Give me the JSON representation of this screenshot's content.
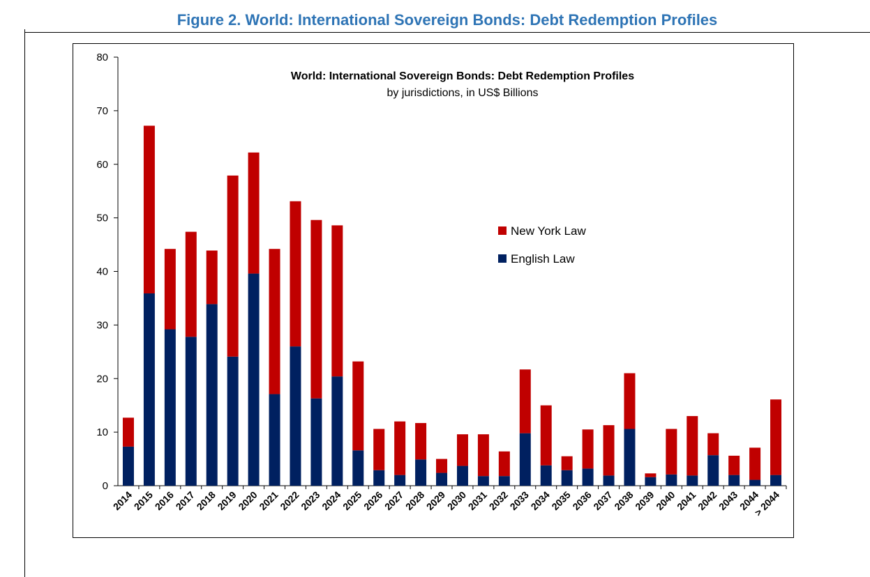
{
  "figure_title": "Figure 2. World: International Sovereign Bonds: Debt Redemption Profiles",
  "colors": {
    "new_york": "#C00000",
    "english": "#002060",
    "title": "#2E74B5"
  },
  "chart_data": {
    "type": "bar",
    "stacked": true,
    "title": "World: International Sovereign Bonds: Debt Redemption Profiles",
    "subtitle": "by jurisdictions, in US$ Billions",
    "xlabel": "",
    "ylabel": "",
    "ylim": [
      0,
      80
    ],
    "yticks": [
      "0",
      "10",
      "20",
      "30",
      "40",
      "50",
      "60",
      "70",
      "80"
    ],
    "grid": false,
    "legend_position": "right-center",
    "categories": [
      "2014",
      "2015",
      "2016",
      "2017",
      "2018",
      "2019",
      "2020",
      "2021",
      "2022",
      "2023",
      "2024",
      "2025",
      "2026",
      "2027",
      "2028",
      "2029",
      "2030",
      "2031",
      "2032",
      "2033",
      "2034",
      "2035",
      "2036",
      "2037",
      "2038",
      "2039",
      "2040",
      "2041",
      "2042",
      "2043",
      "2044",
      "> 2044"
    ],
    "series": [
      {
        "name": "English Law",
        "values": [
          7.3,
          35.9,
          29.2,
          27.8,
          33.9,
          24.1,
          39.6,
          17.1,
          26.0,
          16.3,
          20.4,
          6.6,
          2.9,
          2.0,
          4.9,
          2.4,
          3.7,
          1.8,
          1.8,
          9.8,
          3.8,
          2.9,
          3.2,
          1.9,
          10.6,
          1.6,
          2.1,
          1.9,
          5.7,
          2.0,
          1.1,
          2.0
        ]
      },
      {
        "name": "New York Law",
        "values": [
          5.4,
          31.3,
          15.0,
          19.6,
          10.0,
          33.8,
          22.6,
          27.1,
          27.1,
          33.3,
          28.2,
          16.6,
          7.7,
          10.0,
          6.8,
          2.6,
          5.9,
          7.8,
          4.6,
          11.9,
          11.2,
          2.6,
          7.3,
          9.4,
          10.4,
          0.7,
          8.5,
          11.1,
          4.1,
          3.6,
          6.0,
          14.1
        ]
      }
    ]
  }
}
